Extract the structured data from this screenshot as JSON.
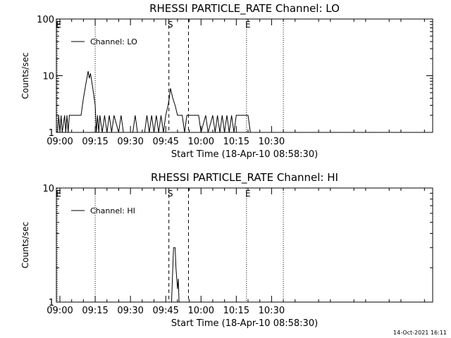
{
  "footer_timestamp": "14-Oct-2021 16:11",
  "chart_data": [
    {
      "type": "line",
      "title": "RHESSI PARTICLE_RATE Channel: LO",
      "xlabel": "Start Time (18-Apr-10 08:58:30)",
      "ylabel": "Counts/sec",
      "yscale": "log",
      "ylim": [
        1,
        100
      ],
      "yticks": [
        "1",
        "10",
        "100"
      ],
      "xlim": [
        "08:58:30",
        "11:38:30"
      ],
      "xticks": [
        "09:00",
        "09:15",
        "09:30",
        "09:45",
        "10:00",
        "10:15",
        "10:30"
      ],
      "legend": {
        "placement": "top-left",
        "entries": [
          "Channel: LO"
        ]
      },
      "markers": [
        {
          "time": "08:58:50",
          "label": "E",
          "style": "dotted"
        },
        {
          "time": "09:15:00",
          "label": "",
          "style": "dotted"
        },
        {
          "time": "09:46:20",
          "label": "S",
          "style": "dashed"
        },
        {
          "time": "09:54:40",
          "label": "",
          "style": "dashed"
        },
        {
          "time": "10:19:20",
          "label": "E",
          "style": "dotted"
        },
        {
          "time": "10:35:00",
          "label": "",
          "style": "dotted"
        }
      ],
      "series": [
        {
          "name": "Channel: LO",
          "x": [
            "08:59",
            "08:59:30",
            "09:00",
            "09:00:30",
            "09:01",
            "09:02",
            "09:02:30",
            "09:03",
            "09:03:30",
            "09:04",
            "09:05",
            "09:09",
            "09:10",
            "09:11",
            "09:12",
            "09:12:30",
            "09:13",
            "09:14",
            "09:15",
            "09:15:30",
            "09:16",
            "09:16:30",
            "09:17",
            "09:18",
            "09:19",
            "09:20",
            "09:21",
            "09:22",
            "09:23",
            "09:25",
            "09:26",
            "09:27",
            "09:31",
            "09:32",
            "09:33",
            "09:36",
            "09:37",
            "09:38",
            "09:39",
            "09:40",
            "09:41",
            "09:42",
            "09:43",
            "09:44",
            "09:45",
            "09:46",
            "09:46:30",
            "09:47",
            "09:48",
            "09:49",
            "09:50",
            "09:51",
            "09:52",
            "09:53",
            "09:54",
            "09:55",
            "09:56",
            "09:57",
            "09:58",
            "09:59",
            "10:00",
            "10:02",
            "10:03",
            "10:05",
            "10:06",
            "10:07",
            "10:08",
            "10:09",
            "10:10",
            "10:11",
            "10:12",
            "10:13",
            "10:14",
            "10:15",
            "10:20",
            "10:21"
          ],
          "y": [
            1,
            2,
            1,
            2,
            1,
            2,
            1,
            2,
            1,
            2,
            2,
            2,
            4,
            7,
            12,
            9,
            11,
            6,
            3,
            1,
            2,
            1,
            2,
            1,
            2,
            1,
            2,
            1,
            2,
            1,
            2,
            1,
            1,
            2,
            1,
            1,
            2,
            1,
            2,
            1,
            2,
            1,
            2,
            1,
            2,
            3,
            4,
            6,
            4,
            3,
            2,
            2,
            2,
            1,
            2,
            2,
            2,
            2,
            2,
            2,
            1,
            2,
            1,
            2,
            1,
            2,
            1,
            2,
            1,
            2,
            1,
            2,
            1,
            2,
            2,
            1
          ]
        }
      ]
    },
    {
      "type": "line",
      "title": "RHESSI PARTICLE_RATE Channel: HI",
      "xlabel": "Start Time (18-Apr-10 08:58:30)",
      "ylabel": "Counts/sec",
      "yscale": "log",
      "ylim": [
        1,
        10
      ],
      "yticks": [
        "1",
        "10"
      ],
      "xlim": [
        "08:58:30",
        "11:38:30"
      ],
      "xticks": [
        "09:00",
        "09:15",
        "09:30",
        "09:45",
        "10:00",
        "10:15",
        "10:30"
      ],
      "legend": {
        "placement": "top-left",
        "entries": [
          "Channel: HI"
        ]
      },
      "markers": [
        {
          "time": "08:58:50",
          "label": "E",
          "style": "dotted"
        },
        {
          "time": "09:15:00",
          "label": "",
          "style": "dotted"
        },
        {
          "time": "09:46:20",
          "label": "S",
          "style": "dashed"
        },
        {
          "time": "09:54:40",
          "label": "",
          "style": "dashed"
        },
        {
          "time": "10:19:20",
          "label": "E",
          "style": "dotted"
        },
        {
          "time": "10:35:00",
          "label": "",
          "style": "dotted"
        }
      ],
      "series": [
        {
          "name": "Channel: HI",
          "x": [
            "09:47:30",
            "09:48",
            "09:48:20",
            "09:49",
            "09:49:20",
            "09:50",
            "09:50:20",
            "09:50:40"
          ],
          "y": [
            1,
            2,
            3,
            3,
            2,
            1.3,
            1.6,
            1
          ]
        }
      ]
    }
  ]
}
